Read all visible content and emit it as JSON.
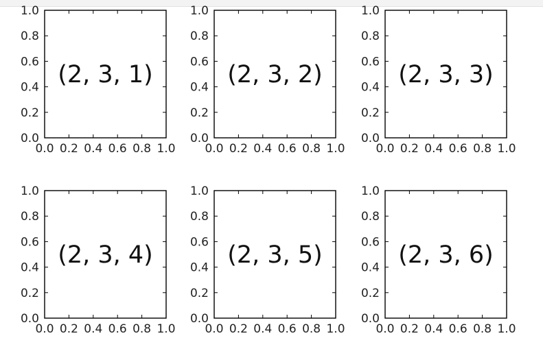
{
  "chart_data": [
    {
      "type": "scatter",
      "label": "(2, 3, 1)",
      "xlim": [
        0,
        1
      ],
      "ylim": [
        0,
        1
      ],
      "xticks": [
        "0.0",
        "0.2",
        "0.4",
        "0.6",
        "0.8",
        "1.0"
      ],
      "yticks": [
        "0.0",
        "0.2",
        "0.4",
        "0.6",
        "0.8",
        "1.0"
      ],
      "grid": false
    },
    {
      "type": "scatter",
      "label": "(2, 3, 2)",
      "xlim": [
        0,
        1
      ],
      "ylim": [
        0,
        1
      ],
      "xticks": [
        "0.0",
        "0.2",
        "0.4",
        "0.6",
        "0.8",
        "1.0"
      ],
      "yticks": [
        "0.0",
        "0.2",
        "0.4",
        "0.6",
        "0.8",
        "1.0"
      ],
      "grid": false
    },
    {
      "type": "scatter",
      "label": "(2, 3, 3)",
      "xlim": [
        0,
        1
      ],
      "ylim": [
        0,
        1
      ],
      "xticks": [
        "0.0",
        "0.2",
        "0.4",
        "0.6",
        "0.8",
        "1.0"
      ],
      "yticks": [
        "0.0",
        "0.2",
        "0.4",
        "0.6",
        "0.8",
        "1.0"
      ],
      "grid": false
    },
    {
      "type": "scatter",
      "label": "(2, 3, 4)",
      "xlim": [
        0,
        1
      ],
      "ylim": [
        0,
        1
      ],
      "xticks": [
        "0.0",
        "0.2",
        "0.4",
        "0.6",
        "0.8",
        "1.0"
      ],
      "yticks": [
        "0.0",
        "0.2",
        "0.4",
        "0.6",
        "0.8",
        "1.0"
      ],
      "grid": false
    },
    {
      "type": "scatter",
      "label": "(2, 3, 5)",
      "xlim": [
        0,
        1
      ],
      "ylim": [
        0,
        1
      ],
      "xticks": [
        "0.0",
        "0.2",
        "0.4",
        "0.6",
        "0.8",
        "1.0"
      ],
      "yticks": [
        "0.0",
        "0.2",
        "0.4",
        "0.6",
        "0.8",
        "1.0"
      ],
      "grid": false
    },
    {
      "type": "scatter",
      "label": "(2, 3, 6)",
      "xlim": [
        0,
        1
      ],
      "ylim": [
        0,
        1
      ],
      "xticks": [
        "0.0",
        "0.2",
        "0.4",
        "0.6",
        "0.8",
        "1.0"
      ],
      "yticks": [
        "0.0",
        "0.2",
        "0.4",
        "0.6",
        "0.8",
        "1.0"
      ],
      "grid": false
    }
  ],
  "colors": {
    "axes": "#000000",
    "text": "#222222",
    "background": "#ffffff"
  }
}
